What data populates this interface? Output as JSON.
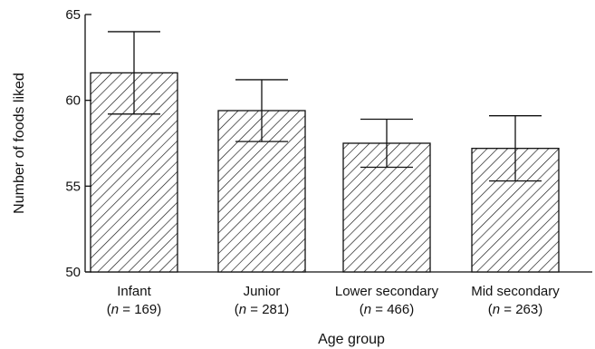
{
  "chart_data": {
    "type": "bar",
    "xlabel": "Age group",
    "ylabel": "Number of foods liked",
    "ylim": [
      50,
      65
    ],
    "yticks": [
      50,
      55,
      60,
      65
    ],
    "grid": false,
    "bar_fill": "diagonal-hatch",
    "colors": {
      "ink": "#111111",
      "background": "#ffffff"
    },
    "categories": [
      {
        "label": "Infant",
        "n_prefix": "(",
        "n_var": "n",
        "n_eq": " = 169)",
        "value": 61.6,
        "err_low": 59.2,
        "err_high": 64.0
      },
      {
        "label": "Junior",
        "n_prefix": "(",
        "n_var": "n",
        "n_eq": " = 281)",
        "value": 59.4,
        "err_low": 57.6,
        "err_high": 61.2
      },
      {
        "label": "Lower secondary",
        "n_prefix": "(",
        "n_var": "n",
        "n_eq": " = 466)",
        "value": 57.5,
        "err_low": 56.1,
        "err_high": 58.9
      },
      {
        "label": "Mid secondary",
        "n_prefix": "(",
        "n_var": "n",
        "n_eq": " = 263)",
        "value": 57.2,
        "err_low": 55.3,
        "err_high": 59.1
      }
    ]
  }
}
